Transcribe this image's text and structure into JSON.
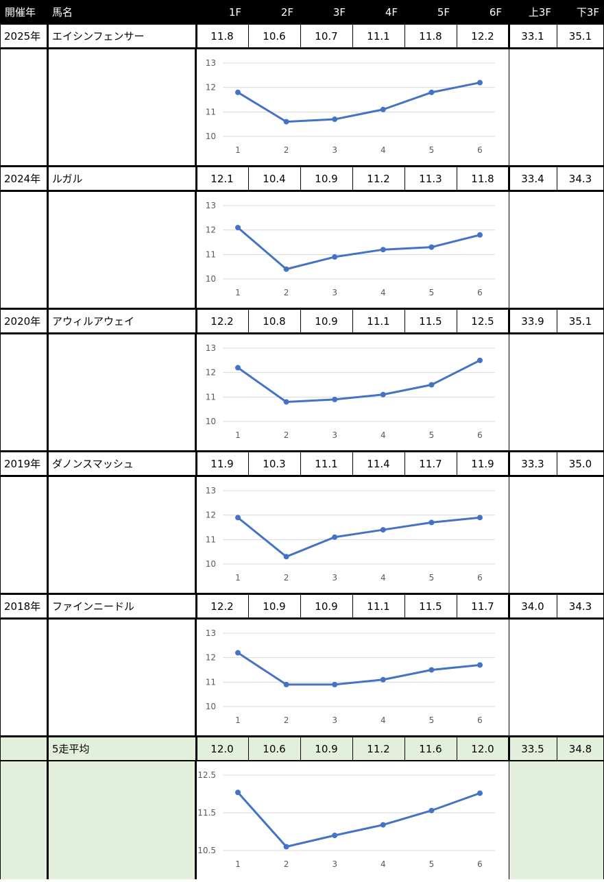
{
  "header": {
    "year": "開催年",
    "name": "馬名",
    "cols": [
      "1F",
      "2F",
      "3F",
      "4F",
      "5F",
      "6F"
    ],
    "first3": "上3F",
    "last3": "下3F"
  },
  "races": [
    {
      "year": "2025年",
      "name": "エイシンフェンサー",
      "splits": [
        "11.8",
        "10.6",
        "10.7",
        "11.1",
        "11.8",
        "12.2"
      ],
      "first3": "33.1",
      "last3": "35.1"
    },
    {
      "year": "2024年",
      "name": "ルガル",
      "splits": [
        "12.1",
        "10.4",
        "10.9",
        "11.2",
        "11.3",
        "11.8"
      ],
      "first3": "33.4",
      "last3": "34.3"
    },
    {
      "year": "2020年",
      "name": "アウィルアウェイ",
      "splits": [
        "12.2",
        "10.8",
        "10.9",
        "11.1",
        "11.5",
        "12.5"
      ],
      "first3": "33.9",
      "last3": "35.1"
    },
    {
      "year": "2019年",
      "name": "ダノンスマッシュ",
      "splits": [
        "11.9",
        "10.3",
        "11.1",
        "11.4",
        "11.7",
        "11.9"
      ],
      "first3": "33.3",
      "last3": "35.0"
    },
    {
      "year": "2018年",
      "name": "ファインニードル",
      "splits": [
        "12.2",
        "10.9",
        "10.9",
        "11.1",
        "11.5",
        "11.7"
      ],
      "first3": "34.0",
      "last3": "34.3"
    }
  ],
  "average": {
    "year": "",
    "name": "5走平均",
    "splits": [
      "12.0",
      "10.6",
      "10.9",
      "11.2",
      "11.6",
      "12.0"
    ],
    "first3": "33.5",
    "last3": "34.8"
  },
  "colors": {
    "line": "#4472c4",
    "grid": "#d9d9d9",
    "avg_bg": "#e2efda",
    "header_bg": "#000000"
  },
  "chart_data": [
    {
      "type": "line",
      "x": [
        1,
        2,
        3,
        4,
        5,
        6
      ],
      "values": [
        11.8,
        10.6,
        10.7,
        11.1,
        11.8,
        12.2
      ],
      "ylim": [
        10,
        13
      ],
      "yticks": [
        10,
        11,
        12,
        13
      ]
    },
    {
      "type": "line",
      "x": [
        1,
        2,
        3,
        4,
        5,
        6
      ],
      "values": [
        12.1,
        10.4,
        10.9,
        11.2,
        11.3,
        11.8
      ],
      "ylim": [
        10,
        13
      ],
      "yticks": [
        10,
        11,
        12,
        13
      ]
    },
    {
      "type": "line",
      "x": [
        1,
        2,
        3,
        4,
        5,
        6
      ],
      "values": [
        12.2,
        10.8,
        10.9,
        11.1,
        11.5,
        12.5
      ],
      "ylim": [
        10,
        13
      ],
      "yticks": [
        10,
        11,
        12,
        13
      ]
    },
    {
      "type": "line",
      "x": [
        1,
        2,
        3,
        4,
        5,
        6
      ],
      "values": [
        11.9,
        10.3,
        11.1,
        11.4,
        11.7,
        11.9
      ],
      "ylim": [
        10,
        13
      ],
      "yticks": [
        10,
        11,
        12,
        13
      ]
    },
    {
      "type": "line",
      "x": [
        1,
        2,
        3,
        4,
        5,
        6
      ],
      "values": [
        12.2,
        10.9,
        10.9,
        11.1,
        11.5,
        11.7
      ],
      "ylim": [
        10,
        13
      ],
      "yticks": [
        10,
        11,
        12,
        13
      ]
    },
    {
      "type": "line",
      "x": [
        1,
        2,
        3,
        4,
        5,
        6
      ],
      "values": [
        12.04,
        10.6,
        10.9,
        11.18,
        11.56,
        12.02
      ],
      "ylim": [
        10.5,
        12.5
      ],
      "yticks": [
        10.5,
        11.5,
        12.5
      ]
    }
  ]
}
